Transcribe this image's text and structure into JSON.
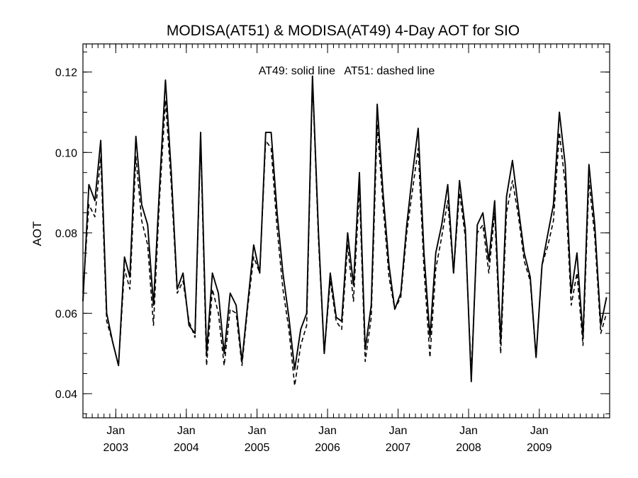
{
  "chart_data": {
    "type": "line",
    "title": "MODISA(AT51) & MODISA(AT49) 4-Day AOT for SIO",
    "annotation": "AT49: solid line   AT51: dashed line",
    "xlabel": "",
    "ylabel": "AOT",
    "xlim": [
      "2002-07-15",
      "2009-12-31"
    ],
    "ylim": [
      0.034,
      0.127
    ],
    "x_ticks": [
      {
        "month": "Jan",
        "year": "2003",
        "date": "2003-01-01"
      },
      {
        "month": "Jan",
        "year": "2004",
        "date": "2004-01-01"
      },
      {
        "month": "Jan",
        "year": "2005",
        "date": "2005-01-01"
      },
      {
        "month": "Jan",
        "year": "2006",
        "date": "2006-01-01"
      },
      {
        "month": "Jan",
        "year": "2007",
        "date": "2007-01-01"
      },
      {
        "month": "Jan",
        "year": "2008",
        "date": "2008-01-01"
      },
      {
        "month": "Jan",
        "year": "2009",
        "date": "2009-01-01"
      }
    ],
    "y_ticks": [
      "0.04",
      "0.06",
      "0.08",
      "0.10",
      "0.12"
    ],
    "y_tick_values": [
      0.04,
      0.06,
      0.08,
      0.1,
      0.12
    ],
    "y_minor_step": 0.005,
    "grid": false,
    "series": [
      {
        "name": "AT49",
        "style": "solid",
        "color": "#000000",
        "x": [
          "2002-07-15",
          "2002-08-15",
          "2002-09-15",
          "2002-10-15",
          "2002-11-15",
          "2002-12-15",
          "2003-01-15",
          "2003-02-15",
          "2003-03-15",
          "2003-04-15",
          "2003-05-15",
          "2003-06-15",
          "2003-07-15",
          "2003-08-15",
          "2003-09-15",
          "2003-10-15",
          "2003-11-15",
          "2003-12-15",
          "2004-01-15",
          "2004-02-15",
          "2004-03-15",
          "2004-04-15",
          "2004-05-15",
          "2004-06-15",
          "2004-07-15",
          "2004-08-15",
          "2004-09-15",
          "2004-10-15",
          "2004-11-15",
          "2004-12-15",
          "2005-01-15",
          "2005-02-15",
          "2005-03-15",
          "2005-04-15",
          "2005-05-15",
          "2005-06-15",
          "2005-07-15",
          "2005-08-15",
          "2005-09-15",
          "2005-10-15",
          "2005-11-15",
          "2005-12-15",
          "2006-01-15",
          "2006-02-15",
          "2006-03-15",
          "2006-04-15",
          "2006-05-15",
          "2006-06-15",
          "2006-07-15",
          "2006-08-15",
          "2006-09-15",
          "2006-10-15",
          "2006-11-15",
          "2006-12-15",
          "2007-01-15",
          "2007-02-15",
          "2007-03-15",
          "2007-04-15",
          "2007-05-15",
          "2007-06-15",
          "2007-07-15",
          "2007-08-15",
          "2007-09-15",
          "2007-10-15",
          "2007-11-15",
          "2007-12-15",
          "2008-01-15",
          "2008-02-15",
          "2008-03-15",
          "2008-04-15",
          "2008-05-15",
          "2008-06-15",
          "2008-07-15",
          "2008-08-15",
          "2008-09-15",
          "2008-10-15",
          "2008-11-15",
          "2008-12-15",
          "2009-01-15",
          "2009-02-15",
          "2009-03-15",
          "2009-04-15",
          "2009-05-15",
          "2009-06-15",
          "2009-07-15",
          "2009-08-15",
          "2009-09-15",
          "2009-10-15",
          "2009-11-15",
          "2009-12-15"
        ],
        "values": [
          0.063,
          0.092,
          0.088,
          0.103,
          0.06,
          0.053,
          0.047,
          0.074,
          0.069,
          0.104,
          0.087,
          0.082,
          0.062,
          0.091,
          0.118,
          0.095,
          0.066,
          0.07,
          0.057,
          0.055,
          0.105,
          0.05,
          0.07,
          0.065,
          0.05,
          0.065,
          0.062,
          0.048,
          0.063,
          0.077,
          0.07,
          0.105,
          0.105,
          0.085,
          0.07,
          0.059,
          0.046,
          0.056,
          0.06,
          0.119,
          0.08,
          0.05,
          0.07,
          0.059,
          0.058,
          0.08,
          0.067,
          0.095,
          0.051,
          0.062,
          0.112,
          0.09,
          0.072,
          0.061,
          0.065,
          0.082,
          0.094,
          0.106,
          0.075,
          0.054,
          0.075,
          0.082,
          0.092,
          0.07,
          0.093,
          0.081,
          0.043,
          0.082,
          0.085,
          0.073,
          0.088,
          0.053,
          0.089,
          0.098,
          0.086,
          0.075,
          0.069,
          0.049,
          0.072,
          0.08,
          0.087,
          0.11,
          0.097,
          0.065,
          0.075,
          0.054,
          0.097,
          0.082,
          0.057,
          0.064
        ]
      },
      {
        "name": "AT51",
        "style": "dashed",
        "color": "#000000",
        "x": [
          "2002-07-15",
          "2002-08-15",
          "2002-09-15",
          "2002-10-15",
          "2002-11-15",
          "2002-12-15",
          "2003-01-15",
          "2003-02-15",
          "2003-03-15",
          "2003-04-15",
          "2003-05-15",
          "2003-06-15",
          "2003-07-15",
          "2003-08-15",
          "2003-09-15",
          "2003-10-15",
          "2003-11-15",
          "2003-12-15",
          "2004-01-15",
          "2004-02-15",
          "2004-03-15",
          "2004-04-15",
          "2004-05-15",
          "2004-06-15",
          "2004-07-15",
          "2004-08-15",
          "2004-09-15",
          "2004-10-15",
          "2004-11-15",
          "2004-12-15",
          "2005-01-15",
          "2005-02-15",
          "2005-03-15",
          "2005-04-15",
          "2005-05-15",
          "2005-06-15",
          "2005-07-15",
          "2005-08-15",
          "2005-09-15",
          "2005-10-15",
          "2005-11-15",
          "2005-12-15",
          "2006-01-15",
          "2006-02-15",
          "2006-03-15",
          "2006-04-15",
          "2006-05-15",
          "2006-06-15",
          "2006-07-15",
          "2006-08-15",
          "2006-09-15",
          "2006-10-15",
          "2006-11-15",
          "2006-12-15",
          "2007-01-15",
          "2007-02-15",
          "2007-03-15",
          "2007-04-15",
          "2007-05-15",
          "2007-06-15",
          "2007-07-15",
          "2007-08-15",
          "2007-09-15",
          "2007-10-15",
          "2007-11-15",
          "2007-12-15",
          "2008-01-15",
          "2008-02-15",
          "2008-03-15",
          "2008-04-15",
          "2008-05-15",
          "2008-06-15",
          "2008-07-15",
          "2008-08-15",
          "2008-09-15",
          "2008-10-15",
          "2008-11-15",
          "2008-12-15",
          "2009-01-15",
          "2009-02-15",
          "2009-03-15",
          "2009-04-15",
          "2009-05-15",
          "2009-06-15",
          "2009-07-15",
          "2009-08-15",
          "2009-09-15",
          "2009-10-15",
          "2009-11-15",
          "2009-12-15"
        ],
        "values": [
          0.065,
          0.087,
          0.084,
          0.099,
          0.058,
          0.053,
          0.047,
          0.071,
          0.066,
          0.099,
          0.083,
          0.077,
          0.057,
          0.088,
          0.113,
          0.092,
          0.065,
          0.068,
          0.058,
          0.054,
          0.103,
          0.047,
          0.066,
          0.06,
          0.047,
          0.061,
          0.06,
          0.047,
          0.062,
          0.074,
          0.07,
          0.103,
          0.101,
          0.081,
          0.066,
          0.056,
          0.042,
          0.052,
          0.057,
          0.118,
          0.078,
          0.05,
          0.068,
          0.058,
          0.056,
          0.077,
          0.063,
          0.091,
          0.048,
          0.059,
          0.107,
          0.087,
          0.069,
          0.061,
          0.064,
          0.08,
          0.09,
          0.101,
          0.071,
          0.049,
          0.071,
          0.079,
          0.088,
          0.07,
          0.09,
          0.079,
          0.045,
          0.08,
          0.082,
          0.07,
          0.085,
          0.05,
          0.085,
          0.093,
          0.084,
          0.073,
          0.068,
          0.049,
          0.072,
          0.077,
          0.083,
          0.105,
          0.092,
          0.062,
          0.07,
          0.052,
          0.093,
          0.079,
          0.055,
          0.06
        ]
      }
    ]
  }
}
